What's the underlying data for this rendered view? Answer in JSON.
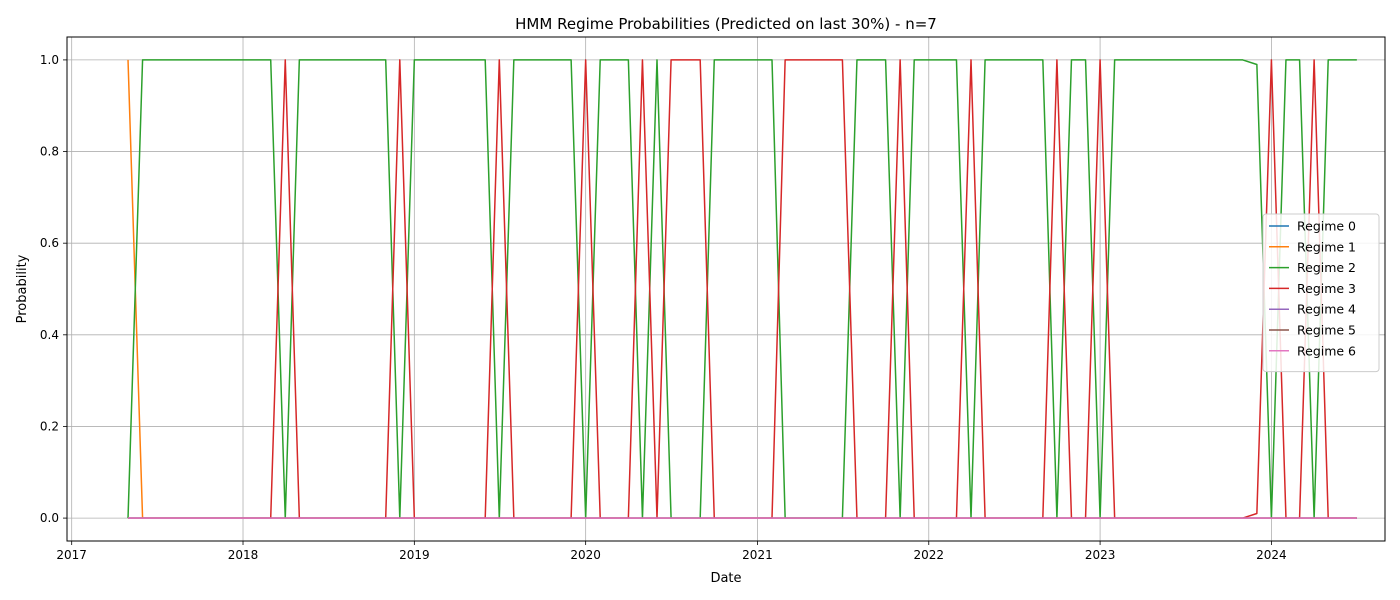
{
  "chart_data": {
    "type": "line",
    "title": "HMM Regime Probabilities (Predicted on last 30%) - n=7",
    "xlabel": "Date",
    "ylabel": "Probability",
    "x_type": "date",
    "xlim": [
      "2016-12-22",
      "2024-08-30"
    ],
    "ylim": [
      -0.05,
      1.05
    ],
    "x_ticks": [
      "2017",
      "2018",
      "2019",
      "2020",
      "2021",
      "2022",
      "2023",
      "2024"
    ],
    "y_ticks": [
      "0.0",
      "0.2",
      "0.4",
      "0.6",
      "0.8",
      "1.0"
    ],
    "grid": true,
    "legend_position": "center-right",
    "series": [
      {
        "name": "Regime 0",
        "color": "#1f77b4",
        "points": [
          [
            "2017-05-01",
            0
          ],
          [
            "2024-07-01",
            0
          ]
        ]
      },
      {
        "name": "Regime 1",
        "color": "#ff7f0e",
        "points": [
          [
            "2017-05-01",
            1
          ],
          [
            "2017-06-01",
            0
          ],
          [
            "2024-07-01",
            0
          ]
        ]
      },
      {
        "name": "Regime 2",
        "color": "#2ca02c",
        "points": [
          [
            "2017-05-01",
            0
          ],
          [
            "2017-06-01",
            1
          ],
          [
            "2018-03-01",
            1
          ],
          [
            "2018-04-01",
            0
          ],
          [
            "2018-05-01",
            1
          ],
          [
            "2018-11-01",
            1
          ],
          [
            "2018-12-01",
            0
          ],
          [
            "2019-01-01",
            1
          ],
          [
            "2019-06-01",
            1
          ],
          [
            "2019-07-01",
            0
          ],
          [
            "2019-08-01",
            1
          ],
          [
            "2019-12-01",
            1
          ],
          [
            "2020-01-01",
            0
          ],
          [
            "2020-02-01",
            1
          ],
          [
            "2020-04-01",
            1
          ],
          [
            "2020-05-01",
            0
          ],
          [
            "2020-06-01",
            1
          ],
          [
            "2020-07-01",
            0
          ],
          [
            "2020-09-01",
            0
          ],
          [
            "2020-10-01",
            1
          ],
          [
            "2021-02-01",
            1
          ],
          [
            "2021-03-01",
            0
          ],
          [
            "2021-07-01",
            0
          ],
          [
            "2021-08-01",
            1
          ],
          [
            "2021-10-01",
            1
          ],
          [
            "2021-11-01",
            0
          ],
          [
            "2021-12-01",
            1
          ],
          [
            "2022-03-01",
            1
          ],
          [
            "2022-04-01",
            0
          ],
          [
            "2022-05-01",
            1
          ],
          [
            "2022-09-01",
            1
          ],
          [
            "2022-10-01",
            0
          ],
          [
            "2022-11-01",
            1
          ],
          [
            "2022-12-01",
            1
          ],
          [
            "2023-01-01",
            0
          ],
          [
            "2023-02-01",
            1
          ],
          [
            "2023-11-01",
            1
          ],
          [
            "2023-12-01",
            0.99
          ],
          [
            "2024-01-01",
            0
          ],
          [
            "2024-02-01",
            1
          ],
          [
            "2024-03-01",
            1
          ],
          [
            "2024-04-01",
            0
          ],
          [
            "2024-05-01",
            1
          ],
          [
            "2024-07-01",
            1
          ]
        ]
      },
      {
        "name": "Regime 3",
        "color": "#d62728",
        "points": [
          [
            "2017-05-01",
            0
          ],
          [
            "2018-03-01",
            0
          ],
          [
            "2018-04-01",
            1
          ],
          [
            "2018-05-01",
            0
          ],
          [
            "2018-11-01",
            0
          ],
          [
            "2018-12-01",
            1
          ],
          [
            "2019-01-01",
            0
          ],
          [
            "2019-06-01",
            0
          ],
          [
            "2019-07-01",
            1
          ],
          [
            "2019-08-01",
            0
          ],
          [
            "2019-12-01",
            0
          ],
          [
            "2020-01-01",
            1
          ],
          [
            "2020-02-01",
            0
          ],
          [
            "2020-04-01",
            0
          ],
          [
            "2020-05-01",
            1
          ],
          [
            "2020-06-01",
            0
          ],
          [
            "2020-07-01",
            1
          ],
          [
            "2020-09-01",
            1
          ],
          [
            "2020-10-01",
            0
          ],
          [
            "2021-02-01",
            0
          ],
          [
            "2021-03-01",
            1
          ],
          [
            "2021-07-01",
            1
          ],
          [
            "2021-08-01",
            0
          ],
          [
            "2021-10-01",
            0
          ],
          [
            "2021-11-01",
            1
          ],
          [
            "2021-12-01",
            0
          ],
          [
            "2022-03-01",
            0
          ],
          [
            "2022-04-01",
            1
          ],
          [
            "2022-05-01",
            0
          ],
          [
            "2022-09-01",
            0
          ],
          [
            "2022-10-01",
            1
          ],
          [
            "2022-11-01",
            0
          ],
          [
            "2022-12-01",
            0
          ],
          [
            "2023-01-01",
            1
          ],
          [
            "2023-02-01",
            0
          ],
          [
            "2023-11-01",
            0
          ],
          [
            "2023-12-01",
            0.01
          ],
          [
            "2024-01-01",
            1
          ],
          [
            "2024-02-01",
            0
          ],
          [
            "2024-03-01",
            0
          ],
          [
            "2024-04-01",
            1
          ],
          [
            "2024-05-01",
            0
          ],
          [
            "2024-07-01",
            0
          ]
        ]
      },
      {
        "name": "Regime 4",
        "color": "#9467bd",
        "points": [
          [
            "2017-05-01",
            0
          ],
          [
            "2024-07-01",
            0
          ]
        ]
      },
      {
        "name": "Regime 5",
        "color": "#8c564b",
        "points": [
          [
            "2017-05-01",
            0
          ],
          [
            "2024-07-01",
            0
          ]
        ]
      },
      {
        "name": "Regime 6",
        "color": "#e377c2",
        "points": [
          [
            "2017-05-01",
            0
          ],
          [
            "2024-07-01",
            0
          ]
        ]
      }
    ]
  }
}
